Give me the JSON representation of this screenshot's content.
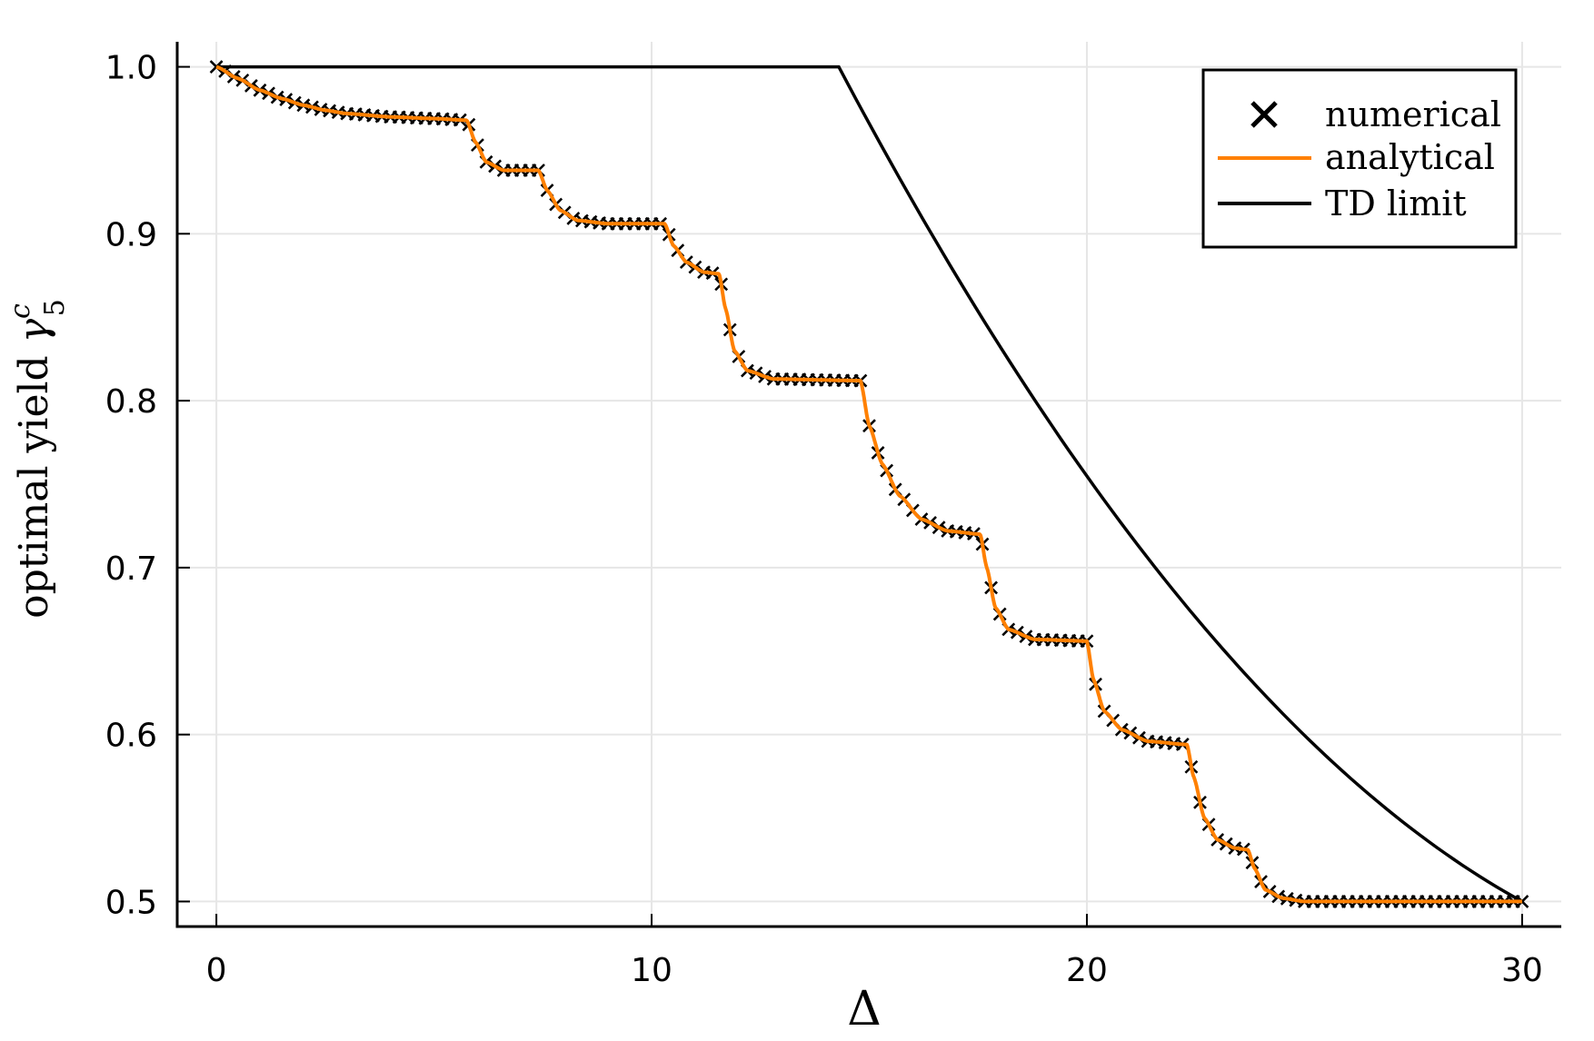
{
  "chart_data": {
    "type": "line",
    "xlabel": "Δ",
    "ylabel": {
      "text": "optimal yield ",
      "symbol": "γ",
      "sup": "c",
      "sub": "5"
    },
    "xlim": [
      -0.9,
      30.9
    ],
    "ylim": [
      0.485,
      1.015
    ],
    "x_ticks": [
      0,
      10,
      20,
      30
    ],
    "x_tick_labels": [
      "0",
      "10",
      "20",
      "30"
    ],
    "y_ticks": [
      0.5,
      0.6,
      0.7,
      0.8,
      0.9,
      1.0
    ],
    "y_tick_labels": [
      "0.5",
      "0.6",
      "0.7",
      "0.8",
      "0.9",
      "1.0"
    ],
    "grid": true,
    "legend_position": "top-right",
    "series": [
      {
        "name": "numerical",
        "kind": "markers",
        "marker": "x",
        "color": "#000000",
        "x_start": 0,
        "x_step": 0.2,
        "x_end": 30,
        "y_from": "analytical"
      },
      {
        "name": "analytical",
        "kind": "step-curve",
        "color": "#ff8000",
        "points": [
          [
            0,
            1.0
          ],
          [
            0.5,
            0.993
          ],
          [
            1.0,
            0.986
          ],
          [
            1.5,
            0.981
          ],
          [
            2.0,
            0.977
          ],
          [
            2.5,
            0.974
          ],
          [
            3.0,
            0.972
          ],
          [
            4.0,
            0.97
          ],
          [
            5.0,
            0.969
          ],
          [
            5.75,
            0.968
          ],
          [
            5.95,
            0.955
          ],
          [
            6.2,
            0.943
          ],
          [
            6.6,
            0.938
          ],
          [
            7.4,
            0.938
          ],
          [
            7.6,
            0.926
          ],
          [
            7.9,
            0.914
          ],
          [
            8.3,
            0.908
          ],
          [
            9.0,
            0.906
          ],
          [
            10.3,
            0.906
          ],
          [
            10.5,
            0.893
          ],
          [
            10.8,
            0.883
          ],
          [
            11.2,
            0.877
          ],
          [
            11.55,
            0.876
          ],
          [
            11.7,
            0.855
          ],
          [
            11.9,
            0.83
          ],
          [
            12.2,
            0.818
          ],
          [
            12.8,
            0.813
          ],
          [
            14.8,
            0.812
          ],
          [
            15.0,
            0.785
          ],
          [
            15.3,
            0.762
          ],
          [
            15.7,
            0.743
          ],
          [
            16.2,
            0.729
          ],
          [
            16.8,
            0.722
          ],
          [
            17.55,
            0.72
          ],
          [
            17.7,
            0.7
          ],
          [
            17.9,
            0.676
          ],
          [
            18.2,
            0.663
          ],
          [
            18.8,
            0.657
          ],
          [
            20.0,
            0.656
          ],
          [
            20.15,
            0.633
          ],
          [
            20.4,
            0.614
          ],
          [
            20.8,
            0.603
          ],
          [
            21.4,
            0.596
          ],
          [
            22.3,
            0.594
          ],
          [
            22.45,
            0.575
          ],
          [
            22.7,
            0.55
          ],
          [
            23.0,
            0.537
          ],
          [
            23.4,
            0.532
          ],
          [
            23.7,
            0.531
          ],
          [
            23.85,
            0.52
          ],
          [
            24.1,
            0.507
          ],
          [
            24.5,
            0.502
          ],
          [
            25.0,
            0.5
          ],
          [
            30.0,
            0.5
          ]
        ]
      },
      {
        "name": "TD limit",
        "kind": "line",
        "color": "#000000",
        "plateau_y": 1.0,
        "plateau_end_x": 14.3,
        "end_point": [
          30,
          0.5
        ]
      }
    ]
  }
}
